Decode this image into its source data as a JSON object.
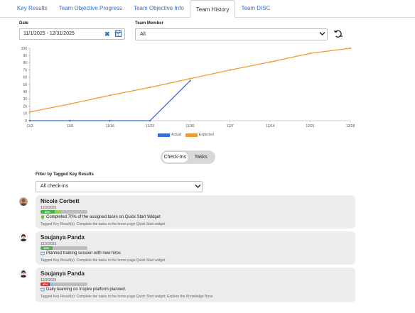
{
  "tabs": [
    {
      "label": "Key Results",
      "active": false
    },
    {
      "label": "Team Objective Progress",
      "active": false
    },
    {
      "label": "Team Objective Info",
      "active": false
    },
    {
      "label": "Team History",
      "active": true
    },
    {
      "label": "Team DISC",
      "active": false
    }
  ],
  "filters": {
    "date_label": "Date",
    "date_value": "11/1/2025 - 12/31/2025",
    "clear_glyph": "✖",
    "member_label": "Team Member",
    "member_value": "All"
  },
  "chart_data": {
    "type": "line",
    "x": [
      "11/2",
      "11/9",
      "11/16",
      "11/23",
      "11/30",
      "12/7",
      "12/14",
      "12/21",
      "12/28"
    ],
    "ylim": [
      0,
      100
    ],
    "yticks": [
      0,
      10,
      20,
      30,
      40,
      50,
      60,
      70,
      80,
      90,
      100
    ],
    "series": [
      {
        "name": "Actual",
        "color": "#3a6fd8",
        "values": [
          0,
          0,
          0,
          0,
          55,
          null,
          null,
          null,
          null
        ]
      },
      {
        "name": "Expected",
        "color": "#f39a2c",
        "values": [
          12,
          23,
          35,
          46,
          58,
          70,
          81,
          93,
          100
        ]
      }
    ],
    "legend": "bottom-center",
    "grid": false
  },
  "toggle": {
    "checkins": "Check-Ins",
    "tasks": "Tasks",
    "selected": "checkins"
  },
  "tag_filter": {
    "label": "Filter by Tagged Key Results",
    "value": "All check-ins"
  },
  "checkins": [
    {
      "name": "Nicole Corbett",
      "date": "12/2/2025",
      "progress": 60,
      "progress_label": "60%",
      "bar_color": "#4caf50",
      "bar2": 0.45,
      "bar2_color": "#9ccc65",
      "icon": "trophy-icon",
      "text": "Completed 70% of the assigned tasks on Quick Start Widget",
      "tagged": "Tagged Key Result(s): Complete the tasks in the home page Quick Start widget"
    },
    {
      "name": "Soujanya Panda",
      "date": "12/2/2025",
      "progress": 50,
      "progress_label": "50%",
      "bar_color": "#4caf50",
      "bar2": 0,
      "bar2_color": "#9ccc65",
      "icon": "handshake-icon",
      "text": "Planned training session with new hires",
      "tagged": "Tagged Key Result(s): Complete the tasks in the home page Quick Start widget"
    },
    {
      "name": "Soujanya Panda",
      "date": "12/2/2025",
      "progress": 40,
      "progress_label": "40%",
      "bar_color": "#d32f2f",
      "bar2": 0.2,
      "bar2_color": "#81c3e8",
      "icon": "handshake-icon",
      "text": "Daily learning on Inspire platform planned.",
      "tagged": "Tagged Key Result(s): Complete the tasks in the home page Quick Start widget; Explore the Knowledge Base"
    }
  ]
}
